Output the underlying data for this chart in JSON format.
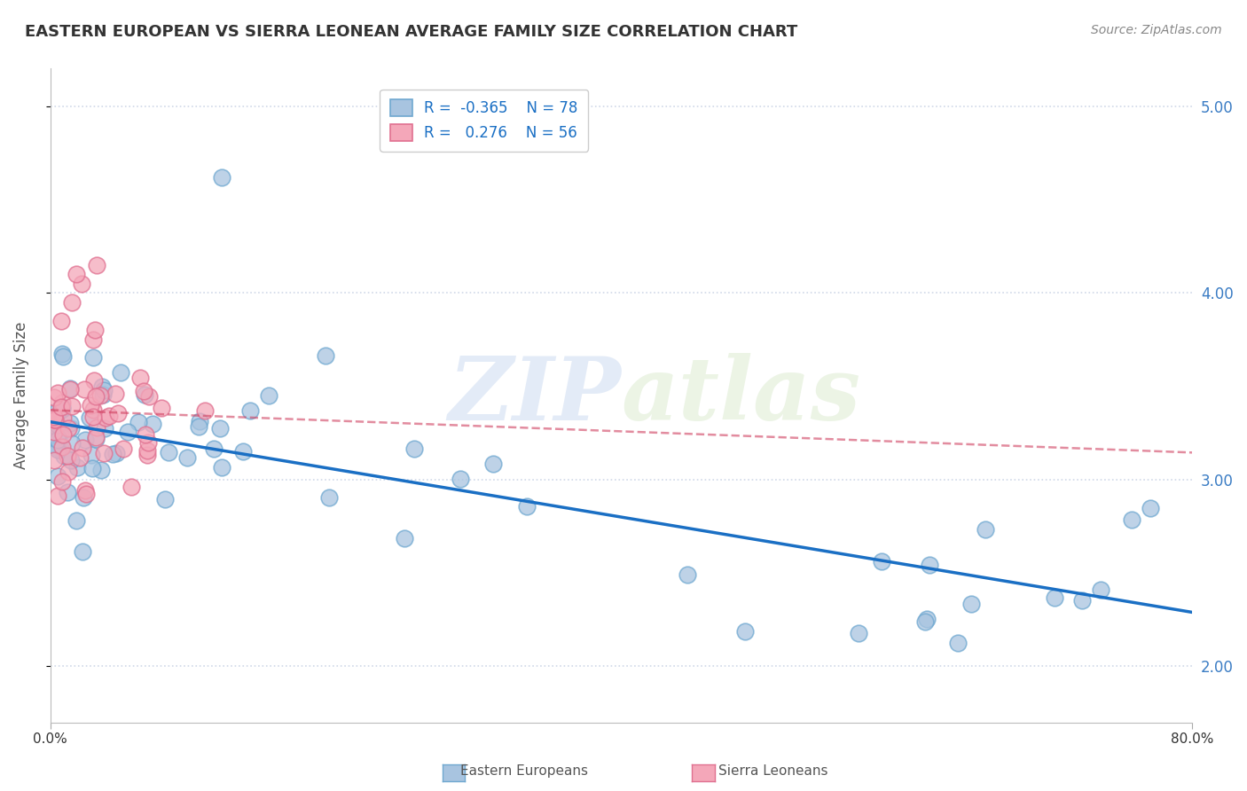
{
  "title": "EASTERN EUROPEAN VS SIERRA LEONEAN AVERAGE FAMILY SIZE CORRELATION CHART",
  "source": "Source: ZipAtlas.com",
  "ylabel": "Average Family Size",
  "ylim": [
    1.7,
    5.2
  ],
  "xlim": [
    0.0,
    80.0
  ],
  "yticks": [
    2.0,
    3.0,
    4.0,
    5.0
  ],
  "blue_R": -0.365,
  "blue_N": 78,
  "pink_R": 0.276,
  "pink_N": 56,
  "blue_color": "#a8c4e0",
  "blue_edge": "#6fa8d0",
  "pink_color": "#f4a7b9",
  "pink_edge": "#e07090",
  "blue_line_color": "#1a6fc4",
  "pink_line_color": "#d04060",
  "legend_label_blue": "Eastern Europeans",
  "legend_label_pink": "Sierra Leoneans",
  "watermark_zip": "ZIP",
  "watermark_atlas": "atlas",
  "background_color": "#ffffff",
  "grid_color": "#d0d8e8"
}
